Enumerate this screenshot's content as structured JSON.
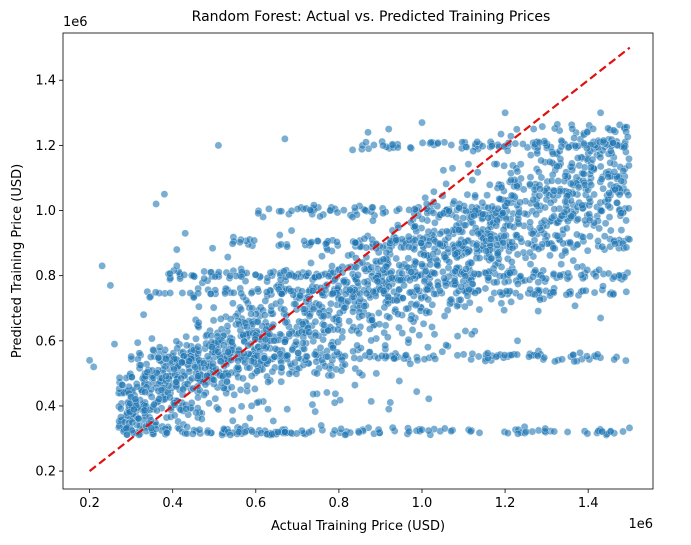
{
  "chart_data": {
    "type": "scatter",
    "title": "Random Forest: Actual vs. Predicted Training Prices",
    "xlabel": "Actual Training Price (USD)",
    "ylabel": "Predicted Training Price (USD)",
    "x_offset_label": "1e6",
    "y_offset_label": "1e6",
    "xlim": [
      0.136,
      1.556
    ],
    "ylim": [
      0.145,
      1.545
    ],
    "x_ticks": [
      0.2,
      0.4,
      0.6,
      0.8,
      1.0,
      1.2,
      1.4
    ],
    "x_tick_labels": [
      "0.2",
      "0.4",
      "0.6",
      "0.8",
      "1.0",
      "1.2",
      "1.4"
    ],
    "y_ticks": [
      0.2,
      0.4,
      0.6,
      0.8,
      1.0,
      1.2,
      1.4
    ],
    "y_tick_labels": [
      "0.2",
      "0.4",
      "0.6",
      "0.8",
      "1.0",
      "1.2",
      "1.4"
    ],
    "grid": false,
    "colors": {
      "points": "#1f77b4",
      "identity_line": "#e01010"
    },
    "identity_line": {
      "x": [
        0.2,
        1.5
      ],
      "y": [
        0.2,
        1.5
      ],
      "style": "dashed"
    },
    "cloud_description": {
      "bands_y": [
        0.32,
        0.55,
        0.75,
        0.8,
        0.9,
        1.0,
        1.2
      ]
    },
    "notable_points": [
      {
        "x": 0.2,
        "y": 0.54
      },
      {
        "x": 0.21,
        "y": 0.52
      },
      {
        "x": 0.23,
        "y": 0.83
      },
      {
        "x": 0.25,
        "y": 0.77
      },
      {
        "x": 0.36,
        "y": 1.02
      },
      {
        "x": 0.38,
        "y": 1.05
      },
      {
        "x": 0.51,
        "y": 1.2
      },
      {
        "x": 0.67,
        "y": 0.32
      },
      {
        "x": 0.89,
        "y": 0.5
      },
      {
        "x": 1.12,
        "y": 0.62
      },
      {
        "x": 1.23,
        "y": 0.6
      },
      {
        "x": 1.43,
        "y": 0.67
      },
      {
        "x": 1.2,
        "y": 1.3
      },
      {
        "x": 1.43,
        "y": 1.3
      },
      {
        "x": 0.67,
        "y": 1.22
      },
      {
        "x": 0.87,
        "y": 1.24
      },
      {
        "x": 0.92,
        "y": 1.25
      },
      {
        "x": 1.0,
        "y": 1.27
      },
      {
        "x": 1.48,
        "y": 0.94
      },
      {
        "x": 0.26,
        "y": 0.59
      },
      {
        "x": 1.18,
        "y": 0.78
      },
      {
        "x": 1.03,
        "y": 0.62
      },
      {
        "x": 1.28,
        "y": 0.78
      },
      {
        "x": 0.33,
        "y": 0.68
      },
      {
        "x": 0.41,
        "y": 0.83
      },
      {
        "x": 0.47,
        "y": 0.36
      },
      {
        "x": 0.59,
        "y": 0.4
      },
      {
        "x": 0.79,
        "y": 0.41
      },
      {
        "x": 0.43,
        "y": 0.93
      },
      {
        "x": 0.41,
        "y": 0.88
      }
    ]
  }
}
